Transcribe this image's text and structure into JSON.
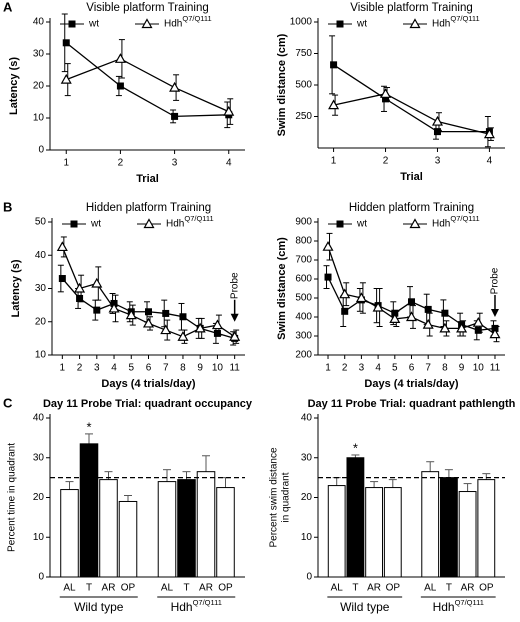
{
  "chart_data": [
    {
      "type": "line",
      "panel": "A",
      "title": "Visible platform Training",
      "xlabel": "Trial",
      "ylabel": "Latency (s)",
      "x": [
        1,
        2,
        3,
        4
      ],
      "xlim": [
        0.7,
        4.3
      ],
      "xticks": [
        1,
        2,
        3,
        4
      ],
      "ylim": [
        0,
        40
      ],
      "yticks": [
        0,
        10,
        20,
        30,
        40
      ],
      "legend": "top",
      "series": [
        {
          "name": "wt",
          "color": "#000000",
          "marker": "square",
          "values": [
            33.5,
            20,
            10.5,
            11
          ],
          "errors": [
            9,
            3,
            2,
            4
          ]
        },
        {
          "name": "HdhQ7/Q111",
          "color": "#000000",
          "marker": "triangle",
          "values": [
            22,
            28.5,
            19.5,
            12
          ],
          "errors": [
            5,
            6,
            4,
            4
          ]
        }
      ]
    },
    {
      "type": "line",
      "title": "Visible platform Training",
      "xlabel": "Trial",
      "ylabel": "Swim distance (cm)",
      "x": [
        1,
        2,
        3,
        4
      ],
      "xlim": [
        0.7,
        4.3
      ],
      "xticks": [
        1,
        2,
        3,
        4
      ],
      "ylim": [
        0,
        1000
      ],
      "yticks": [
        250,
        500,
        750,
        1000
      ],
      "legend": "top",
      "series": [
        {
          "name": "wt",
          "color": "#000000",
          "marker": "square",
          "values": [
            660,
            390,
            130,
            130
          ],
          "errors": [
            230,
            100,
            60,
            120
          ]
        },
        {
          "name": "HdhQ7/Q111",
          "color": "#000000",
          "marker": "triangle",
          "values": [
            340,
            430,
            210,
            110
          ],
          "errors": [
            80,
            50,
            70,
            50
          ]
        }
      ]
    },
    {
      "type": "line",
      "panel": "B",
      "title": "Hidden platform Training",
      "xlabel": "Days (4 trials/day)",
      "ylabel": "Latency (s)",
      "x": [
        1,
        2,
        3,
        4,
        5,
        6,
        7,
        8,
        9,
        10,
        11
      ],
      "xlim": [
        0.4,
        11.6
      ],
      "xticks": [
        1,
        2,
        3,
        4,
        5,
        6,
        7,
        8,
        9,
        10,
        11
      ],
      "ylim": [
        10,
        50
      ],
      "yticks": [
        10,
        20,
        30,
        40,
        50
      ],
      "legend": "top",
      "annotation": {
        "text": "Probe",
        "x": 11,
        "y": 20
      },
      "series": [
        {
          "name": "wt",
          "color": "#000000",
          "marker": "square",
          "values": [
            33,
            27,
            23.5,
            25.5,
            23,
            23,
            22.5,
            21.5,
            18,
            16.5,
            15
          ],
          "errors": [
            4,
            3,
            3,
            3,
            3,
            3,
            4,
            4,
            3,
            3,
            2
          ]
        },
        {
          "name": "HdhQ7/Q111",
          "color": "#000000",
          "marker": "triangle",
          "values": [
            42.5,
            30,
            31.5,
            24,
            22,
            19.5,
            17.5,
            15.5,
            18,
            19,
            15.5
          ],
          "errors": [
            3,
            4,
            5,
            4,
            3,
            2,
            3,
            2,
            3,
            3,
            2
          ]
        }
      ]
    },
    {
      "type": "line",
      "title": "Hidden platform Training",
      "xlabel": "Days (4 trials/day)",
      "ylabel": "Swim distance (cm)",
      "x": [
        1,
        2,
        3,
        4,
        5,
        6,
        7,
        8,
        9,
        10,
        11
      ],
      "xlim": [
        0.4,
        11.6
      ],
      "xticks": [
        1,
        2,
        3,
        4,
        5,
        6,
        7,
        8,
        9,
        10,
        11
      ],
      "ylim": [
        200,
        900
      ],
      "yticks": [
        200,
        300,
        400,
        500,
        600,
        700,
        800,
        900
      ],
      "legend": "top",
      "annotation": {
        "text": "Probe",
        "x": 11,
        "y": 400
      },
      "series": [
        {
          "name": "wt",
          "color": "#000000",
          "marker": "square",
          "values": [
            610,
            430,
            490,
            460,
            420,
            480,
            440,
            420,
            360,
            330,
            340
          ],
          "errors": [
            60,
            80,
            60,
            90,
            60,
            80,
            80,
            70,
            60,
            50,
            40
          ]
        },
        {
          "name": "HdhQ7/Q111",
          "color": "#000000",
          "marker": "triangle",
          "values": [
            770,
            520,
            500,
            450,
            390,
            400,
            360,
            340,
            340,
            370,
            310
          ],
          "errors": [
            70,
            60,
            80,
            100,
            40,
            60,
            60,
            40,
            40,
            50,
            40
          ]
        }
      ]
    },
    {
      "type": "bar",
      "panel": "C",
      "title": "Day 11 Probe Trial: quadrant occupancy",
      "ylabel": [
        "Percent time in quadrant"
      ],
      "categories": [
        "AL",
        "T",
        "AR",
        "OP"
      ],
      "colors": [
        "#ffffff",
        "#000000",
        "#ffffff",
        "#ffffff"
      ],
      "ylim": [
        0,
        40
      ],
      "yticks": [
        0,
        10,
        20,
        30,
        40
      ],
      "reference_line": 25,
      "series": [
        {
          "name": "Wild type",
          "values": [
            22,
            33.5,
            24.5,
            19
          ],
          "errors": [
            2,
            2.5,
            2,
            1.5
          ]
        },
        {
          "name": "HdhQ7/Q111",
          "values": [
            24,
            24.5,
            26.5,
            22.5
          ],
          "errors": [
            3,
            2,
            4,
            2.5
          ]
        }
      ],
      "annotations": [
        {
          "text": "*",
          "series": 0,
          "index": 1
        }
      ]
    },
    {
      "type": "bar",
      "title": "Day 11 Probe Trial: quadrant pathlength",
      "ylabel": [
        "Percent swim distance",
        "in quadrant"
      ],
      "categories": [
        "AL",
        "T",
        "AR",
        "OP"
      ],
      "colors": [
        "#ffffff",
        "#000000",
        "#ffffff",
        "#ffffff"
      ],
      "ylim": [
        0,
        40
      ],
      "yticks": [
        0,
        10,
        20,
        30,
        40
      ],
      "reference_line": 25,
      "series": [
        {
          "name": "Wild type",
          "values": [
            23,
            30,
            22.5,
            22.5
          ],
          "errors": [
            2,
            0.7,
            1.5,
            2
          ]
        },
        {
          "name": "HdhQ7/Q111",
          "values": [
            26.5,
            25,
            21.5,
            24.5
          ],
          "errors": [
            2.5,
            2,
            2,
            1.5
          ]
        }
      ],
      "annotations": [
        {
          "text": "*",
          "series": 0,
          "index": 1
        }
      ]
    }
  ]
}
